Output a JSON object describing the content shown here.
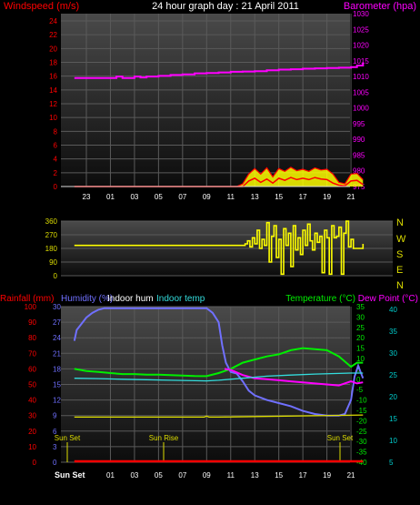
{
  "title": "24 hour graph day : 21 April 2011",
  "colors": {
    "background": "#000000",
    "wind": "#ff0000",
    "gust_fill": "#ffff00",
    "barometer": "#ff00ff",
    "wind_dir": "#ffff00",
    "rain": "#ff0000",
    "humidity": "#7070ff",
    "indoor_hum": "#ffffff",
    "indoor_temp": "#33dddd",
    "temperature": "#00ee00",
    "dewpoint": "#ff00ff",
    "dewpoint_axis": "#00cccc",
    "sun": "#dddd00",
    "ticks": "#ffffff"
  },
  "chart_data": [
    {
      "type": "line",
      "panel": "wind-barometer",
      "left_axis_label": "Windspeed (m/s)",
      "right_axis_label": "Barometer (hpa)",
      "left_ylim": [
        0,
        24
      ],
      "left_ticks": [
        "0",
        "2",
        "4",
        "6",
        "8",
        "10",
        "12",
        "14",
        "16",
        "18",
        "20",
        "22",
        "24"
      ],
      "right_ylim": [
        975,
        1030
      ],
      "right_ticks": [
        "975",
        "980",
        "985",
        "990",
        "995",
        "1000",
        "1005",
        "1010",
        "1015",
        "1020",
        "1025",
        "1030"
      ],
      "x_ticks": [
        "23",
        "01",
        "03",
        "05",
        "07",
        "09",
        "11",
        "13",
        "15",
        "17",
        "19",
        "21"
      ],
      "grid": true,
      "series": [
        {
          "name": "Barometer",
          "axis": "right",
          "x": [
            -2,
            0,
            1,
            1.5,
            2,
            3,
            3.5,
            4,
            5,
            6,
            7,
            8,
            9,
            10,
            11,
            12,
            13,
            14,
            15,
            16,
            17,
            18,
            19,
            20,
            21,
            21.5,
            22
          ],
          "y": [
            1009.5,
            1009.5,
            1009.5,
            1010,
            1009.5,
            1010,
            1009.7,
            1010,
            1010.2,
            1010.5,
            1010.7,
            1011,
            1011.1,
            1011.3,
            1011.5,
            1011.6,
            1011.7,
            1012,
            1012.2,
            1012.3,
            1012.5,
            1012.6,
            1012.7,
            1012.8,
            1013,
            1013.5,
            1014.5
          ]
        },
        {
          "name": "Wind gust",
          "axis": "left",
          "x": [
            -2,
            11.5,
            12,
            12.5,
            13,
            13.5,
            14,
            14.5,
            15,
            15.5,
            16,
            16.5,
            17,
            17.5,
            18,
            18.5,
            19,
            19.5,
            20,
            20.5,
            21,
            21.5,
            22
          ],
          "y": [
            0,
            0,
            0.4,
            1.8,
            2.6,
            1.8,
            2.7,
            1.4,
            2.6,
            2.2,
            2.8,
            2.3,
            2.5,
            2.2,
            2.7,
            2.4,
            2.5,
            1.8,
            0.6,
            0.4,
            1.8,
            1.9,
            1.0
          ]
        },
        {
          "name": "Wind speed",
          "axis": "left",
          "x": [
            -2,
            12,
            12.5,
            13,
            13.5,
            14,
            14.5,
            15,
            15.5,
            16,
            16.5,
            17,
            17.5,
            18,
            18.5,
            19,
            19.5,
            20,
            20.5,
            21,
            21.5,
            22
          ],
          "y": [
            0,
            0,
            0.8,
            1.2,
            0.6,
            1.1,
            0.5,
            1.2,
            0.9,
            1.3,
            1.0,
            1.2,
            1.0,
            1.3,
            1.1,
            1.0,
            0.5,
            0.2,
            0.1,
            0.8,
            0.9,
            0.3
          ]
        }
      ]
    },
    {
      "type": "line",
      "panel": "wind-direction",
      "left_ylim": [
        0,
        360
      ],
      "left_ticks": [
        "0",
        "90",
        "180",
        "270",
        "360"
      ],
      "right_labels": [
        "N",
        "W",
        "S",
        "E",
        "N"
      ],
      "x_ticks": [],
      "grid": true,
      "series": [
        {
          "name": "Wind direction",
          "x": [
            -2,
            12.0,
            12.2,
            12.4,
            12.6,
            12.8,
            13.0,
            13.2,
            13.4,
            13.6,
            13.8,
            14.0,
            14.2,
            14.4,
            14.6,
            14.8,
            15.0,
            15.2,
            15.4,
            15.6,
            15.8,
            16.0,
            16.2,
            16.4,
            16.6,
            16.8,
            17.0,
            17.2,
            17.4,
            17.6,
            17.8,
            18.0,
            18.2,
            18.4,
            18.6,
            18.8,
            19.0,
            19.2,
            19.4,
            19.6,
            19.8,
            20.0,
            20.2,
            20.4,
            20.6,
            20.8,
            21.0,
            21.2,
            21.5,
            22
          ],
          "y": [
            200,
            200,
            210,
            230,
            190,
            250,
            210,
            300,
            180,
            240,
            200,
            350,
            90,
            260,
            330,
            120,
            240,
            10,
            310,
            200,
            280,
            60,
            330,
            170,
            250,
            140,
            300,
            200,
            340,
            230,
            170,
            280,
            220,
            260,
            20,
            300,
            250,
            10,
            330,
            250,
            260,
            320,
            10,
            280,
            360,
            190,
            240,
            180,
            180,
            210
          ]
        }
      ]
    },
    {
      "type": "line",
      "panel": "rain-humidity-temperature",
      "legend": [
        "Rainfall (mm)",
        "Humidity (%)",
        "Indoor hum",
        "Indoor temp",
        "Temperature (°C)",
        "Dew Point (°C)"
      ],
      "rain_ticks": [
        "0",
        "10",
        "20",
        "30",
        "40",
        "50",
        "60",
        "70",
        "80",
        "90",
        "100"
      ],
      "humidity_ticks": [
        "0",
        "3",
        "6",
        "9",
        "12",
        "15",
        "18",
        "21",
        "24",
        "27",
        "30"
      ],
      "temperature_ticks": [
        "-40",
        "-35",
        "-30",
        "-25",
        "-20",
        "-15",
        "-10",
        "-5",
        "0",
        "5",
        "10",
        "15",
        "20",
        "25",
        "30",
        "35"
      ],
      "dewpoint_ticks": [
        "5",
        "10",
        "15",
        "20",
        "25",
        "30",
        "35",
        "40"
      ],
      "x_ticks": [
        "01",
        "03",
        "05",
        "07",
        "09",
        "11",
        "13",
        "15",
        "17",
        "19",
        "21"
      ],
      "sun_labels": [
        "Sun Set",
        "Sun Rise",
        "Sun Set"
      ],
      "bottom_label": "Sun Set",
      "grid": true,
      "series": [
        {
          "name": "Humidity (%)",
          "x": [
            -2,
            -1.8,
            -1.5,
            -1,
            -0.5,
            0,
            0.5,
            1,
            2,
            4,
            6,
            7,
            8,
            9,
            9.5,
            10,
            10.3,
            10.6,
            11,
            11.5,
            12,
            12.5,
            13,
            14,
            15,
            16,
            17,
            18,
            19,
            20,
            20.5,
            21,
            21.3,
            21.6,
            22
          ],
          "y": [
            78,
            85,
            88,
            93,
            96,
            98,
            99,
            99,
            99,
            99,
            99,
            99,
            99,
            99,
            96,
            90,
            75,
            64,
            58,
            57,
            52,
            46,
            43,
            40,
            38,
            36,
            33,
            31,
            30,
            30,
            31,
            40,
            55,
            62,
            54
          ]
        },
        {
          "name": "Temperature (°C)",
          "x": [
            -2,
            -1,
            0,
            1,
            2,
            3,
            4,
            5,
            6,
            7,
            8,
            9,
            10,
            11,
            12,
            13,
            14,
            15,
            16,
            17,
            18,
            19,
            20,
            21,
            21.5,
            22
          ],
          "y": [
            5,
            4,
            3.5,
            3,
            2.5,
            2.5,
            2.2,
            2.2,
            2,
            1.8,
            1.6,
            1.5,
            3,
            5,
            8,
            9.5,
            11,
            12,
            14,
            15,
            14.5,
            14,
            11,
            6,
            8,
            8
          ]
        },
        {
          "name": "Dew Point (°C)",
          "x": [
            10.5,
            11,
            12,
            13,
            14,
            15,
            16,
            17,
            18,
            19,
            20,
            21,
            21.5,
            22
          ],
          "y": [
            5,
            4.5,
            2,
            0.5,
            0,
            -0.5,
            -1,
            -1.5,
            -2,
            -2.5,
            -3,
            -1,
            -2,
            -1.5
          ]
        },
        {
          "name": "Indoor temp",
          "x": [
            -2,
            0,
            2,
            4,
            6,
            8,
            9,
            10,
            12,
            14,
            16,
            18,
            20,
            21,
            22
          ],
          "y": [
            0.5,
            0.3,
            0,
            -0.2,
            -0.5,
            -0.7,
            -0.8,
            -0.5,
            0.5,
            1.5,
            2,
            2.5,
            2.8,
            3,
            3
          ]
        },
        {
          "name": "Indoor hum",
          "x": [
            -2,
            8.8,
            9,
            9.2,
            10,
            22
          ],
          "y": [
            8.7,
            8.7,
            8.9,
            8.7,
            8.7,
            9.1
          ]
        },
        {
          "name": "Rainfall (mm)",
          "x": [
            -2,
            22
          ],
          "y": [
            0,
            0
          ]
        }
      ]
    }
  ]
}
